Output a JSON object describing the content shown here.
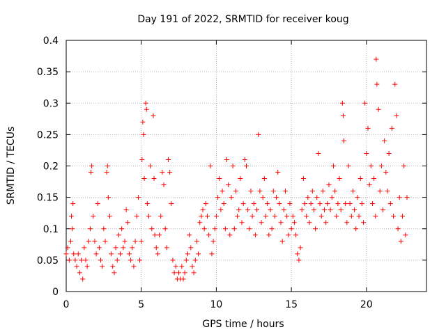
{
  "chart_data": {
    "type": "scatter",
    "title": "Day 191 of 2022, SRMTID for receiver koug",
    "xlabel": "GPS time / hours",
    "ylabel": "SRMTID / TECUs",
    "xlim": [
      0,
      24
    ],
    "ylim": [
      0,
      0.4
    ],
    "xticks": [
      0,
      5,
      10,
      15,
      20
    ],
    "xtick_labels": [
      "0",
      "5",
      "10",
      "15",
      "20"
    ],
    "yticks": [
      0,
      0.05,
      0.1,
      0.15,
      0.2,
      0.25,
      0.3,
      0.35,
      0.4
    ],
    "ytick_labels": [
      "0",
      "0.05",
      "0.1",
      "0.15",
      "0.2",
      "0.25",
      "0.3",
      "0.35",
      "0.4"
    ],
    "grid": true,
    "marker": "plus",
    "color": "#ff0000",
    "series": [
      {
        "name": "SRMTID",
        "points": [
          [
            0.0,
            0.06
          ],
          [
            0.1,
            0.07
          ],
          [
            0.2,
            0.05
          ],
          [
            0.3,
            0.08
          ],
          [
            0.35,
            0.12
          ],
          [
            0.4,
            0.1
          ],
          [
            0.45,
            0.14
          ],
          [
            0.5,
            0.06
          ],
          [
            0.6,
            0.05
          ],
          [
            0.7,
            0.04
          ],
          [
            0.8,
            0.06
          ],
          [
            0.9,
            0.03
          ],
          [
            1.0,
            0.05
          ],
          [
            1.1,
            0.02
          ],
          [
            1.2,
            0.07
          ],
          [
            1.3,
            0.05
          ],
          [
            1.4,
            0.04
          ],
          [
            1.5,
            0.08
          ],
          [
            1.6,
            0.1
          ],
          [
            1.65,
            0.19
          ],
          [
            1.7,
            0.2
          ],
          [
            1.8,
            0.12
          ],
          [
            1.9,
            0.08
          ],
          [
            2.0,
            0.06
          ],
          [
            2.1,
            0.14
          ],
          [
            2.2,
            0.07
          ],
          [
            2.3,
            0.05
          ],
          [
            2.4,
            0.04
          ],
          [
            2.5,
            0.1
          ],
          [
            2.6,
            0.08
          ],
          [
            2.7,
            0.19
          ],
          [
            2.75,
            0.2
          ],
          [
            2.8,
            0.15
          ],
          [
            2.9,
            0.12
          ],
          [
            3.0,
            0.06
          ],
          [
            3.1,
            0.04
          ],
          [
            3.2,
            0.03
          ],
          [
            3.3,
            0.07
          ],
          [
            3.4,
            0.05
          ],
          [
            3.5,
            0.09
          ],
          [
            3.6,
            0.06
          ],
          [
            3.7,
            0.1
          ],
          [
            3.8,
            0.07
          ],
          [
            3.9,
            0.08
          ],
          [
            4.0,
            0.13
          ],
          [
            4.1,
            0.11
          ],
          [
            4.2,
            0.06
          ],
          [
            4.3,
            0.05
          ],
          [
            4.4,
            0.07
          ],
          [
            4.5,
            0.04
          ],
          [
            4.6,
            0.08
          ],
          [
            4.7,
            0.12
          ],
          [
            4.8,
            0.15
          ],
          [
            4.9,
            0.05
          ],
          [
            5.0,
            0.08
          ],
          [
            5.05,
            0.21
          ],
          [
            5.1,
            0.27
          ],
          [
            5.15,
            0.25
          ],
          [
            5.2,
            0.18
          ],
          [
            5.3,
            0.3
          ],
          [
            5.35,
            0.29
          ],
          [
            5.4,
            0.14
          ],
          [
            5.5,
            0.12
          ],
          [
            5.6,
            0.2
          ],
          [
            5.7,
            0.1
          ],
          [
            5.8,
            0.28
          ],
          [
            5.85,
            0.18
          ],
          [
            5.9,
            0.09
          ],
          [
            6.0,
            0.07
          ],
          [
            6.1,
            0.06
          ],
          [
            6.2,
            0.09
          ],
          [
            6.3,
            0.12
          ],
          [
            6.4,
            0.19
          ],
          [
            6.5,
            0.17
          ],
          [
            6.6,
            0.1
          ],
          [
            6.7,
            0.07
          ],
          [
            6.8,
            0.21
          ],
          [
            6.9,
            0.19
          ],
          [
            7.0,
            0.14
          ],
          [
            7.1,
            0.05
          ],
          [
            7.2,
            0.03
          ],
          [
            7.3,
            0.04
          ],
          [
            7.4,
            0.02
          ],
          [
            7.5,
            0.03
          ],
          [
            7.6,
            0.02
          ],
          [
            7.7,
            0.04
          ],
          [
            7.8,
            0.02
          ],
          [
            7.9,
            0.03
          ],
          [
            8.0,
            0.05
          ],
          [
            8.1,
            0.06
          ],
          [
            8.2,
            0.09
          ],
          [
            8.3,
            0.07
          ],
          [
            8.4,
            0.04
          ],
          [
            8.5,
            0.03
          ],
          [
            8.6,
            0.05
          ],
          [
            8.7,
            0.08
          ],
          [
            8.8,
            0.06
          ],
          [
            8.9,
            0.11
          ],
          [
            9.0,
            0.12
          ],
          [
            9.1,
            0.13
          ],
          [
            9.2,
            0.1
          ],
          [
            9.3,
            0.14
          ],
          [
            9.4,
            0.12
          ],
          [
            9.5,
            0.09
          ],
          [
            9.6,
            0.2
          ],
          [
            9.7,
            0.06
          ],
          [
            9.8,
            0.08
          ],
          [
            9.9,
            0.1
          ],
          [
            10.0,
            0.12
          ],
          [
            10.1,
            0.15
          ],
          [
            10.2,
            0.18
          ],
          [
            10.3,
            0.13
          ],
          [
            10.4,
            0.16
          ],
          [
            10.5,
            0.14
          ],
          [
            10.6,
            0.1
          ],
          [
            10.7,
            0.21
          ],
          [
            10.8,
            0.17
          ],
          [
            10.9,
            0.09
          ],
          [
            11.0,
            0.15
          ],
          [
            11.1,
            0.2
          ],
          [
            11.2,
            0.1
          ],
          [
            11.3,
            0.16
          ],
          [
            11.4,
            0.12
          ],
          [
            11.5,
            0.13
          ],
          [
            11.6,
            0.18
          ],
          [
            11.7,
            0.11
          ],
          [
            11.8,
            0.14
          ],
          [
            11.9,
            0.21
          ],
          [
            12.0,
            0.2
          ],
          [
            12.1,
            0.13
          ],
          [
            12.2,
            0.1
          ],
          [
            12.3,
            0.16
          ],
          [
            12.4,
            0.12
          ],
          [
            12.5,
            0.14
          ],
          [
            12.6,
            0.09
          ],
          [
            12.7,
            0.13
          ],
          [
            12.8,
            0.25
          ],
          [
            12.9,
            0.16
          ],
          [
            13.0,
            0.11
          ],
          [
            13.1,
            0.15
          ],
          [
            13.2,
            0.18
          ],
          [
            13.3,
            0.12
          ],
          [
            13.4,
            0.14
          ],
          [
            13.5,
            0.09
          ],
          [
            13.6,
            0.13
          ],
          [
            13.7,
            0.1
          ],
          [
            13.8,
            0.16
          ],
          [
            13.9,
            0.12
          ],
          [
            14.0,
            0.15
          ],
          [
            14.1,
            0.19
          ],
          [
            14.2,
            0.14
          ],
          [
            14.3,
            0.11
          ],
          [
            14.4,
            0.08
          ],
          [
            14.5,
            0.13
          ],
          [
            14.6,
            0.16
          ],
          [
            14.7,
            0.12
          ],
          [
            14.8,
            0.09
          ],
          [
            14.9,
            0.14
          ],
          [
            15.0,
            0.1
          ],
          [
            15.1,
            0.12
          ],
          [
            15.2,
            0.11
          ],
          [
            15.3,
            0.09
          ],
          [
            15.4,
            0.06
          ],
          [
            15.5,
            0.05
          ],
          [
            15.6,
            0.07
          ],
          [
            15.7,
            0.13
          ],
          [
            15.8,
            0.18
          ],
          [
            15.9,
            0.14
          ],
          [
            16.0,
            0.12
          ],
          [
            16.1,
            0.15
          ],
          [
            16.2,
            0.11
          ],
          [
            16.3,
            0.14
          ],
          [
            16.4,
            0.16
          ],
          [
            16.5,
            0.13
          ],
          [
            16.6,
            0.1
          ],
          [
            16.7,
            0.15
          ],
          [
            16.8,
            0.22
          ],
          [
            16.9,
            0.14
          ],
          [
            17.0,
            0.12
          ],
          [
            17.1,
            0.16
          ],
          [
            17.2,
            0.13
          ],
          [
            17.3,
            0.11
          ],
          [
            17.4,
            0.14
          ],
          [
            17.5,
            0.17
          ],
          [
            17.6,
            0.13
          ],
          [
            17.7,
            0.15
          ],
          [
            17.8,
            0.2
          ],
          [
            17.9,
            0.16
          ],
          [
            18.0,
            0.12
          ],
          [
            18.1,
            0.14
          ],
          [
            18.2,
            0.18
          ],
          [
            18.3,
            0.13
          ],
          [
            18.4,
            0.3
          ],
          [
            18.45,
            0.28
          ],
          [
            18.5,
            0.24
          ],
          [
            18.6,
            0.14
          ],
          [
            18.7,
            0.11
          ],
          [
            18.8,
            0.2
          ],
          [
            18.9,
            0.14
          ],
          [
            19.0,
            0.12
          ],
          [
            19.1,
            0.16
          ],
          [
            19.2,
            0.13
          ],
          [
            19.3,
            0.1
          ],
          [
            19.4,
            0.15
          ],
          [
            19.5,
            0.12
          ],
          [
            19.6,
            0.18
          ],
          [
            19.7,
            0.14
          ],
          [
            19.8,
            0.11
          ],
          [
            19.9,
            0.3
          ],
          [
            20.0,
            0.22
          ],
          [
            20.1,
            0.26
          ],
          [
            20.2,
            0.17
          ],
          [
            20.3,
            0.2
          ],
          [
            20.4,
            0.14
          ],
          [
            20.5,
            0.18
          ],
          [
            20.6,
            0.12
          ],
          [
            20.65,
            0.37
          ],
          [
            20.7,
            0.33
          ],
          [
            20.8,
            0.29
          ],
          [
            20.9,
            0.16
          ],
          [
            21.0,
            0.2
          ],
          [
            21.1,
            0.13
          ],
          [
            21.2,
            0.24
          ],
          [
            21.3,
            0.19
          ],
          [
            21.4,
            0.16
          ],
          [
            21.5,
            0.22
          ],
          [
            21.6,
            0.14
          ],
          [
            21.7,
            0.26
          ],
          [
            21.8,
            0.12
          ],
          [
            21.9,
            0.33
          ],
          [
            22.0,
            0.28
          ],
          [
            22.1,
            0.1
          ],
          [
            22.2,
            0.15
          ],
          [
            22.3,
            0.08
          ],
          [
            22.4,
            0.12
          ],
          [
            22.5,
            0.2
          ],
          [
            22.6,
            0.09
          ],
          [
            22.7,
            0.15
          ]
        ]
      }
    ]
  }
}
